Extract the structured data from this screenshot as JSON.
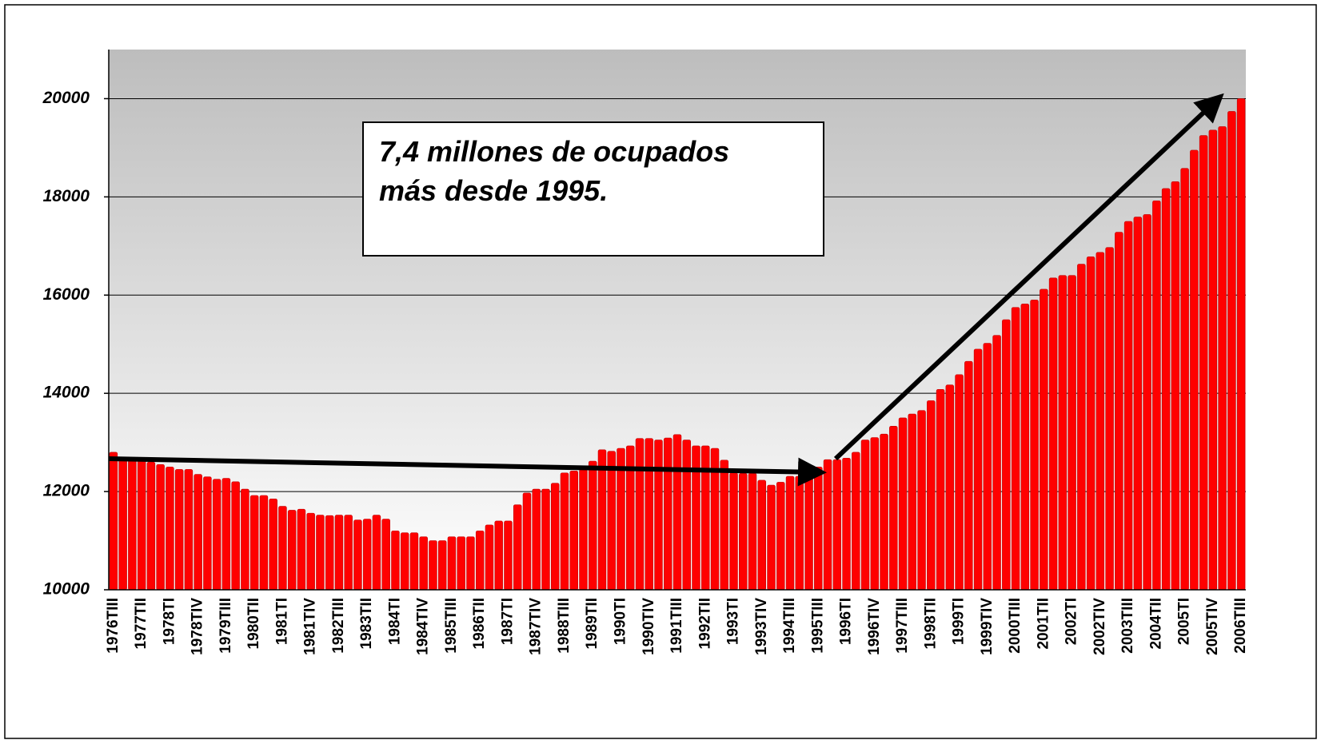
{
  "chart_data": {
    "type": "bar",
    "annotation": [
      "7,4 millones de ocupados",
      "más desde 1995."
    ],
    "categories": [
      "1976TIII",
      null,
      null,
      "1977TII",
      null,
      null,
      "1978TI",
      null,
      null,
      "1978TIV",
      null,
      null,
      "1979TIII",
      null,
      null,
      "1980TII",
      null,
      null,
      "1981TI",
      null,
      null,
      "1981TIV",
      null,
      null,
      "1982TIII",
      null,
      null,
      "1983TII",
      null,
      null,
      "1984TI",
      null,
      null,
      "1984TIV",
      null,
      null,
      "1985TIII",
      null,
      null,
      "1986TII",
      null,
      null,
      "1987TI",
      null,
      null,
      "1987TIV",
      null,
      null,
      "1988TIII",
      null,
      null,
      "1989TII",
      null,
      null,
      "1990TI",
      null,
      null,
      "1990TIV",
      null,
      null,
      "1991TIII",
      null,
      null,
      "1992TII",
      null,
      null,
      "1993TI",
      null,
      null,
      "1993TIV",
      null,
      null,
      "1994TIII",
      null,
      null,
      "1995TIII",
      null,
      null,
      "1996TI",
      null,
      null,
      "1996TIV",
      null,
      null,
      "1997TIII",
      null,
      null,
      "1998TII",
      null,
      null,
      "1999TI",
      null,
      null,
      "1999TIV",
      null,
      null,
      "2000TIII",
      null,
      null,
      "2001TII",
      null,
      null,
      "2002TI",
      null,
      null,
      "2002TIV",
      null,
      null,
      "2003TIII",
      null,
      null,
      "2004TII",
      null,
      null,
      "2005TI",
      null,
      null,
      "2005TIV",
      null,
      null,
      "2006TIII"
    ],
    "values": [
      12800,
      12700,
      12650,
      12650,
      12600,
      12550,
      12500,
      12450,
      12450,
      12350,
      12300,
      12250,
      12270,
      12200,
      12050,
      11920,
      11920,
      11850,
      11700,
      11620,
      11640,
      11560,
      11520,
      11510,
      11520,
      11520,
      11420,
      11440,
      11520,
      11440,
      11200,
      11160,
      11160,
      11080,
      11000,
      11000,
      11080,
      11080,
      11080,
      11200,
      11320,
      11400,
      11400,
      11730,
      11970,
      12050,
      12050,
      12170,
      12380,
      12420,
      12450,
      12620,
      12850,
      12820,
      12880,
      12930,
      13080,
      13080,
      13050,
      13090,
      13160,
      13050,
      12930,
      12930,
      12880,
      12640,
      12380,
      12370,
      12370,
      12230,
      12130,
      12190,
      12310,
      12310,
      12370,
      12500,
      12650,
      12650,
      12680,
      12800,
      13050,
      13100,
      13170,
      13330,
      13500,
      13580,
      13650,
      13850,
      14080,
      14170,
      14380,
      14650,
      14900,
      15020,
      15180,
      15500,
      15750,
      15820,
      15900,
      16120,
      16350,
      16400,
      16400,
      16630,
      16780,
      16870,
      16970,
      17280,
      17500,
      17590,
      17640,
      17920,
      18170,
      18310,
      18580,
      18950,
      19250,
      19360,
      19430,
      19740,
      20000
    ],
    "color": "#ff0000",
    "ylim": [
      10000,
      21000
    ],
    "yticks": [
      10000,
      12000,
      14000,
      16000,
      18000,
      20000
    ],
    "grid": true
  }
}
